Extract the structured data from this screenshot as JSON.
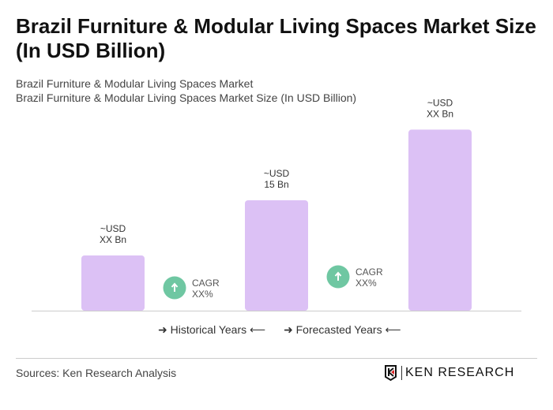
{
  "title": "Brazil Furniture & Modular Living Spaces Market Size (In USD Billion)",
  "subtitle1": "Brazil Furniture & Modular Living Spaces Market",
  "subtitle2": "Brazil Furniture & Modular Living Spaces Market Size (In USD Billion)",
  "chart_data": {
    "type": "bar",
    "categories": [
      "",
      "",
      ""
    ],
    "values": [
      7.5,
      15,
      24.6
    ],
    "data_labels": [
      [
        "~USD",
        "XX Bn"
      ],
      [
        "~USD",
        "15 Bn"
      ],
      [
        "~USD",
        "XX Bn"
      ]
    ],
    "bar_color": "#dcc1f5",
    "cagr": [
      {
        "line1": "CAGR",
        "line2": "XX%"
      },
      {
        "line1": "CAGR",
        "line2": "XX%"
      }
    ],
    "cagr_color": "#6fc7a2",
    "grid": false
  },
  "legend": {
    "historical": "Historical Years",
    "forecasted": "Forecasted Years"
  },
  "source": "Sources: Ken Research Analysis",
  "logo_text": "KEN RESEARCH"
}
